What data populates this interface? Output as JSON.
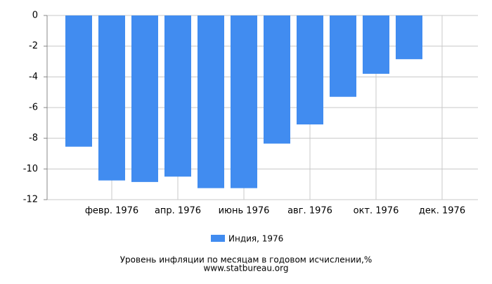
{
  "chart_data": {
    "type": "bar",
    "title": "Уровень инфляции по месяцам в годовом исчислении,%",
    "subtitle": "www.statbureau.org",
    "categories": [
      null,
      "февр. 1976",
      null,
      "апр. 1976",
      null,
      "июнь 1976",
      null,
      "авг. 1976",
      null,
      "окт. 1976",
      null,
      "дек. 1976"
    ],
    "series": [
      {
        "name": "Индия, 1976",
        "color": "#418cf0",
        "values": [
          -8.55,
          -10.75,
          -10.85,
          -10.5,
          -11.25,
          -11.25,
          -8.35,
          -7.1,
          -5.3,
          -3.8,
          -2.85,
          null
        ]
      }
    ],
    "ylim": [
      -12,
      0
    ],
    "yticks": [
      0,
      -2,
      -4,
      -6,
      -8,
      -10,
      -12
    ],
    "grid": true
  }
}
